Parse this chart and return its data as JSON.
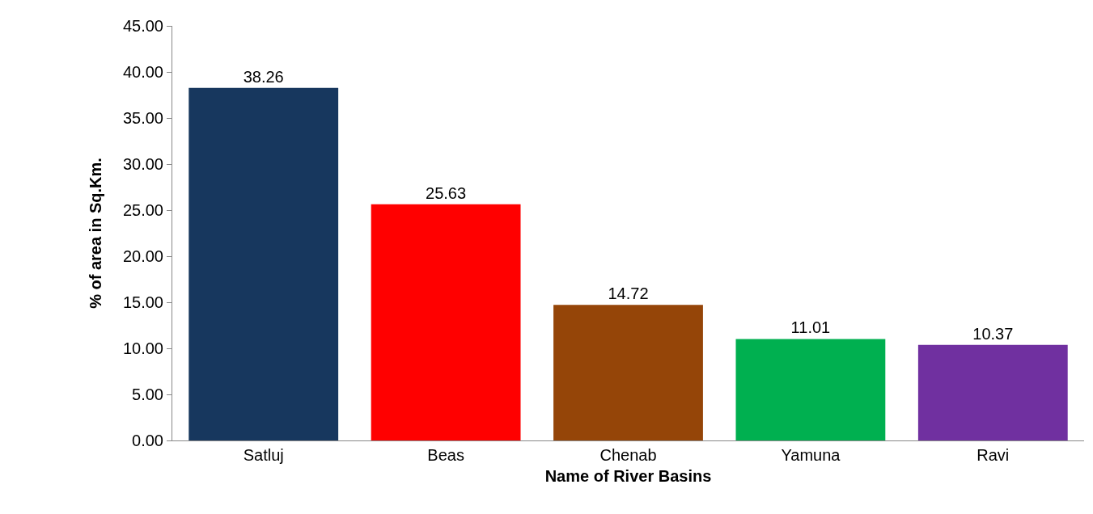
{
  "chart_data": {
    "type": "bar",
    "xlabel": "Name of River Basins",
    "ylabel": "% of area in Sq.Km.",
    "categories": [
      "Satluj",
      "Beas",
      "Chenab",
      "Yamuna",
      "Ravi"
    ],
    "values": [
      38.26,
      25.63,
      14.72,
      11.01,
      10.37
    ],
    "colors": [
      "#17375e",
      "#ff0000",
      "#954508",
      "#00b050",
      "#7030a0"
    ],
    "ylim": [
      0,
      45
    ],
    "yticks": [
      {
        "value": 0,
        "label": "0.00"
      },
      {
        "value": 5,
        "label": "5.00"
      },
      {
        "value": 10,
        "label": "10.00"
      },
      {
        "value": 15,
        "label": "15.00"
      },
      {
        "value": 20,
        "label": "20.00"
      },
      {
        "value": 25,
        "label": "25.00"
      },
      {
        "value": 30,
        "label": "30.00"
      },
      {
        "value": 35,
        "label": "35.00"
      },
      {
        "value": 40,
        "label": "40.00"
      },
      {
        "value": 45,
        "label": "45.00"
      }
    ],
    "data_labels": true
  }
}
